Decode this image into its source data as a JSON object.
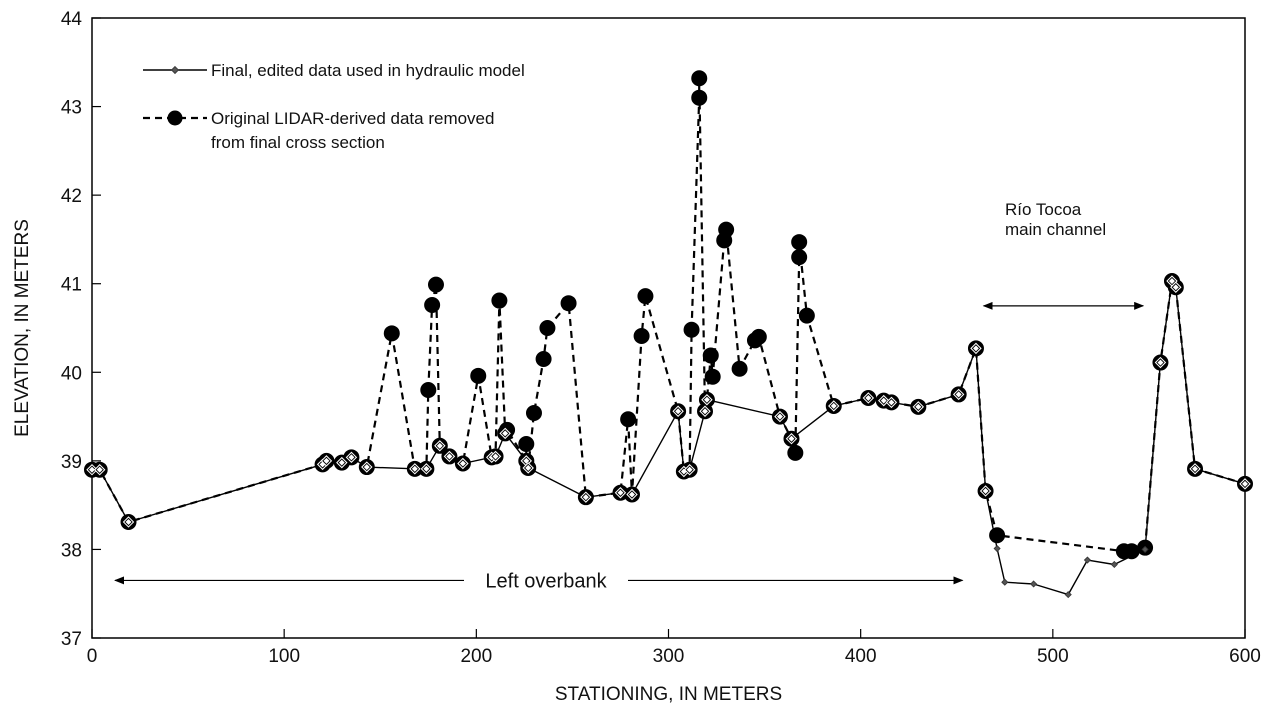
{
  "chart_data": {
    "type": "line",
    "xlabel": "STATIONING, IN METERS",
    "ylabel": "ELEVATION, IN METERS",
    "xlim": [
      0,
      600
    ],
    "ylim": [
      37,
      44
    ],
    "xticks": [
      0,
      100,
      200,
      300,
      400,
      500,
      600
    ],
    "yticks": [
      37,
      38,
      39,
      40,
      41,
      42,
      43,
      44
    ],
    "grid": false,
    "legend_position": "top-left",
    "series": [
      {
        "name": "Final, edited data used in hydraulic model",
        "style": "solid",
        "marker": "diamond",
        "color": "#000000",
        "points": [
          [
            0,
            38.9
          ],
          [
            4,
            38.9
          ],
          [
            19,
            38.31
          ],
          [
            120,
            38.96
          ],
          [
            122,
            39.0
          ],
          [
            130,
            38.98
          ],
          [
            135,
            39.04
          ],
          [
            143,
            38.93
          ],
          [
            168,
            38.91
          ],
          [
            174,
            38.91
          ],
          [
            181,
            39.17
          ],
          [
            186,
            39.05
          ],
          [
            193,
            38.97
          ],
          [
            208,
            39.04
          ],
          [
            210,
            39.05
          ],
          [
            215,
            39.31
          ],
          [
            226,
            39.0
          ],
          [
            227,
            38.92
          ],
          [
            257,
            38.59
          ],
          [
            275,
            38.64
          ],
          [
            281,
            38.62
          ],
          [
            305,
            39.56
          ],
          [
            308,
            38.88
          ],
          [
            311,
            38.9
          ],
          [
            319,
            39.56
          ],
          [
            320,
            39.69
          ],
          [
            358,
            39.5
          ],
          [
            364,
            39.25
          ],
          [
            386,
            39.62
          ],
          [
            404,
            39.71
          ],
          [
            412,
            39.68
          ],
          [
            416,
            39.66
          ],
          [
            430,
            39.61
          ],
          [
            451,
            39.75
          ],
          [
            460,
            40.27
          ],
          [
            465,
            38.66
          ],
          [
            471,
            38.01
          ],
          [
            475,
            37.63
          ],
          [
            490,
            37.61
          ],
          [
            508,
            37.49
          ],
          [
            518,
            37.88
          ],
          [
            532,
            37.83
          ],
          [
            548,
            38.0
          ],
          [
            556,
            40.11
          ],
          [
            562,
            41.03
          ],
          [
            564,
            40.96
          ],
          [
            574,
            38.91
          ],
          [
            600,
            38.74
          ]
        ]
      },
      {
        "name": "Original LIDAR-derived data removed from final cross section",
        "style": "dashed",
        "marker": "circle",
        "color": "#000000",
        "points": [
          [
            0,
            38.9
          ],
          [
            4,
            38.9
          ],
          [
            19,
            38.31
          ],
          [
            120,
            38.96
          ],
          [
            122,
            39.0
          ],
          [
            130,
            38.98
          ],
          [
            135,
            39.04
          ],
          [
            143,
            38.93
          ],
          [
            156,
            40.44
          ],
          [
            168,
            38.91
          ],
          [
            174,
            38.91
          ],
          [
            175,
            39.8
          ],
          [
            177,
            40.76
          ],
          [
            179,
            40.99
          ],
          [
            181,
            39.17
          ],
          [
            186,
            39.05
          ],
          [
            193,
            38.97
          ],
          [
            201,
            39.96
          ],
          [
            208,
            39.04
          ],
          [
            210,
            39.05
          ],
          [
            212,
            40.81
          ],
          [
            215,
            39.31
          ],
          [
            216,
            39.35
          ],
          [
            226,
            39.0
          ],
          [
            226,
            39.19
          ],
          [
            227,
            38.92
          ],
          [
            230,
            39.54
          ],
          [
            235,
            40.15
          ],
          [
            237,
            40.5
          ],
          [
            248,
            40.78
          ],
          [
            257,
            38.59
          ],
          [
            275,
            38.64
          ],
          [
            279,
            39.47
          ],
          [
            281,
            38.62
          ],
          [
            286,
            40.41
          ],
          [
            288,
            40.86
          ],
          [
            305,
            39.56
          ],
          [
            308,
            38.88
          ],
          [
            311,
            38.9
          ],
          [
            312,
            40.48
          ],
          [
            316,
            43.1
          ],
          [
            316,
            43.32
          ],
          [
            319,
            39.56
          ],
          [
            320,
            39.69
          ],
          [
            322,
            40.19
          ],
          [
            323,
            39.95
          ],
          [
            329,
            41.49
          ],
          [
            330,
            41.61
          ],
          [
            337,
            40.04
          ],
          [
            345,
            40.36
          ],
          [
            347,
            40.4
          ],
          [
            358,
            39.5
          ],
          [
            364,
            39.25
          ],
          [
            366,
            39.09
          ],
          [
            368,
            41.3
          ],
          [
            368,
            41.47
          ],
          [
            372,
            40.64
          ],
          [
            386,
            39.62
          ],
          [
            404,
            39.71
          ],
          [
            412,
            39.68
          ],
          [
            416,
            39.66
          ],
          [
            430,
            39.61
          ],
          [
            451,
            39.75
          ],
          [
            460,
            40.27
          ],
          [
            465,
            38.66
          ],
          [
            471,
            38.16
          ],
          [
            537,
            37.98
          ],
          [
            541,
            37.98
          ],
          [
            548,
            38.02
          ],
          [
            556,
            40.11
          ],
          [
            562,
            41.03
          ],
          [
            564,
            40.96
          ],
          [
            574,
            38.91
          ],
          [
            600,
            38.74
          ]
        ],
        "removed_points": [
          [
            156,
            40.44
          ],
          [
            175,
            39.8
          ],
          [
            177,
            40.76
          ],
          [
            179,
            40.99
          ],
          [
            201,
            39.96
          ],
          [
            212,
            40.81
          ],
          [
            226,
            39.19
          ],
          [
            230,
            39.54
          ],
          [
            235,
            40.15
          ],
          [
            237,
            40.5
          ],
          [
            248,
            40.78
          ],
          [
            279,
            39.47
          ],
          [
            286,
            40.41
          ],
          [
            288,
            40.86
          ],
          [
            312,
            40.48
          ],
          [
            316,
            43.1
          ],
          [
            316,
            43.32
          ],
          [
            322,
            40.19
          ],
          [
            323,
            39.95
          ],
          [
            329,
            41.49
          ],
          [
            330,
            41.61
          ],
          [
            337,
            40.04
          ],
          [
            345,
            40.36
          ],
          [
            347,
            40.4
          ],
          [
            366,
            39.09
          ],
          [
            368,
            41.3
          ],
          [
            368,
            41.47
          ],
          [
            372,
            40.64
          ],
          [
            471,
            38.16
          ],
          [
            537,
            37.98
          ],
          [
            548,
            38.02
          ]
        ]
      }
    ],
    "annotations": [
      {
        "text": "Left overbank",
        "arrow_from": 12,
        "arrow_to": 453,
        "y": 37.65
      },
      {
        "text_lines": [
          "Río Tocoa",
          "main channel"
        ],
        "arrow_from": 464,
        "arrow_to": 547,
        "y": 40.75
      }
    ]
  }
}
